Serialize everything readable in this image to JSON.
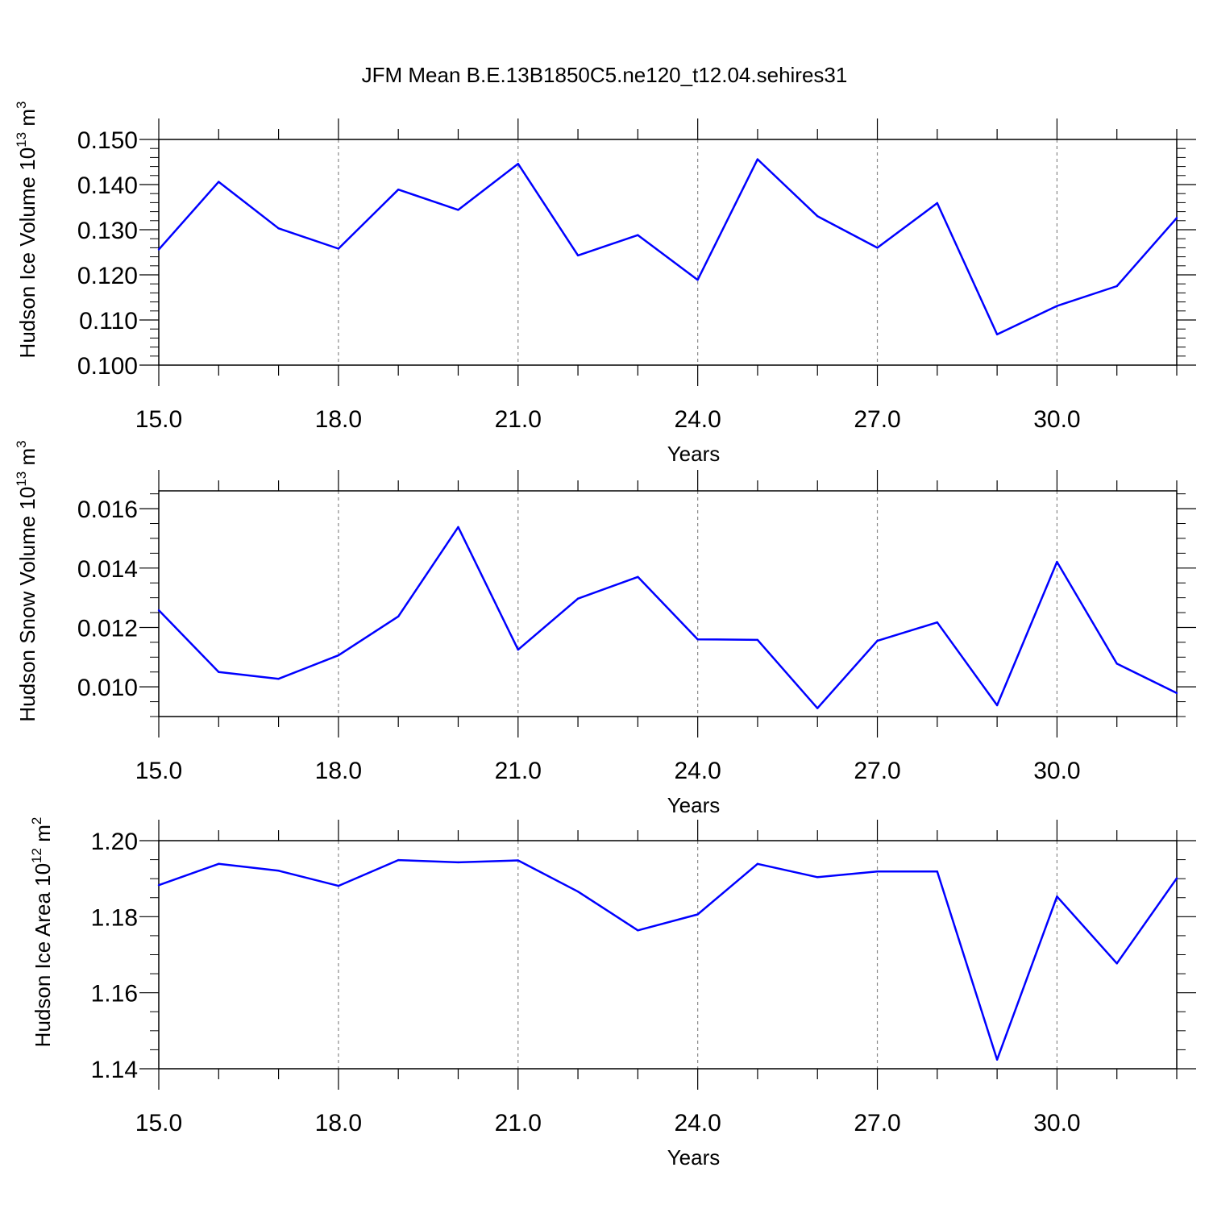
{
  "title": "JFM Mean B.E.13B1850C5.ne120_t12.04.sehires31",
  "colors": {
    "line": "#0000ff",
    "axis": "#000000",
    "grid": "#888888"
  },
  "chart_data": [
    {
      "type": "line",
      "ylabel": "Hudson Ice Volume 10",
      "ylabel_exp": "13",
      "ylabel_unit": " m",
      "ylabel_unit_exp": "3",
      "xlabel": "Years",
      "xlim": [
        15,
        32
      ],
      "ylim": [
        0.1,
        0.15
      ],
      "x_ticks": [
        "15.0",
        "18.0",
        "21.0",
        "24.0",
        "27.0",
        "30.0"
      ],
      "x_tick_values": [
        15,
        18,
        21,
        24,
        27,
        30
      ],
      "y_ticks": [
        "0.100",
        "0.110",
        "0.120",
        "0.130",
        "0.140",
        "0.150"
      ],
      "y_tick_values": [
        0.1,
        0.11,
        0.12,
        0.13,
        0.14,
        0.15
      ],
      "y_minor_step": 0.002,
      "x": [
        15,
        16,
        17,
        18,
        19,
        20,
        21,
        22,
        23,
        24,
        25,
        26,
        27,
        28,
        29,
        30,
        31,
        32
      ],
      "values": [
        0.1256,
        0.1406,
        0.1303,
        0.1258,
        0.1389,
        0.1344,
        0.1446,
        0.1243,
        0.1288,
        0.1189,
        0.1456,
        0.133,
        0.126,
        0.1359,
        0.1068,
        0.1131,
        0.1175,
        0.1326
      ]
    },
    {
      "type": "line",
      "ylabel": "Hudson Snow Volume 10",
      "ylabel_exp": "13",
      "ylabel_unit": " m",
      "ylabel_unit_exp": "3",
      "xlabel": "Years",
      "xlim": [
        15,
        32
      ],
      "ylim": [
        0.009,
        0.0166
      ],
      "x_ticks": [
        "15.0",
        "18.0",
        "21.0",
        "24.0",
        "27.0",
        "30.0"
      ],
      "x_tick_values": [
        15,
        18,
        21,
        24,
        27,
        30
      ],
      "y_ticks": [
        "0.010",
        "0.012",
        "0.014",
        "0.016"
      ],
      "y_tick_values": [
        0.01,
        0.012,
        0.014,
        0.016
      ],
      "y_minor_step": 0.0005,
      "x": [
        15,
        16,
        17,
        18,
        19,
        20,
        21,
        22,
        23,
        24,
        25,
        26,
        27,
        28,
        29,
        30,
        31,
        32
      ],
      "values": [
        0.01258,
        0.0105,
        0.01027,
        0.01106,
        0.01237,
        0.01538,
        0.01125,
        0.01297,
        0.0137,
        0.0116,
        0.01158,
        0.00928,
        0.01155,
        0.01217,
        0.00938,
        0.01421,
        0.01078,
        0.00979
      ]
    },
    {
      "type": "line",
      "ylabel": "Hudson Ice Area 10",
      "ylabel_exp": "12",
      "ylabel_unit": " m",
      "ylabel_unit_exp": "2",
      "xlabel": "Years",
      "xlim": [
        15,
        32
      ],
      "ylim": [
        1.14,
        1.2
      ],
      "x_ticks": [
        "15.0",
        "18.0",
        "21.0",
        "24.0",
        "27.0",
        "30.0"
      ],
      "x_tick_values": [
        15,
        18,
        21,
        24,
        27,
        30
      ],
      "y_ticks": [
        "1.14",
        "1.16",
        "1.18",
        "1.20"
      ],
      "y_tick_values": [
        1.14,
        1.16,
        1.18,
        1.2
      ],
      "y_minor_step": 0.005,
      "x": [
        15,
        16,
        17,
        18,
        19,
        20,
        21,
        22,
        23,
        24,
        25,
        26,
        27,
        28,
        29,
        30,
        31,
        32
      ],
      "values": [
        1.1883,
        1.1939,
        1.1921,
        1.1881,
        1.1949,
        1.1943,
        1.1948,
        1.1866,
        1.1764,
        1.1806,
        1.1939,
        1.1904,
        1.1919,
        1.1919,
        1.1424,
        1.1853,
        1.1677,
        1.1901
      ]
    }
  ]
}
